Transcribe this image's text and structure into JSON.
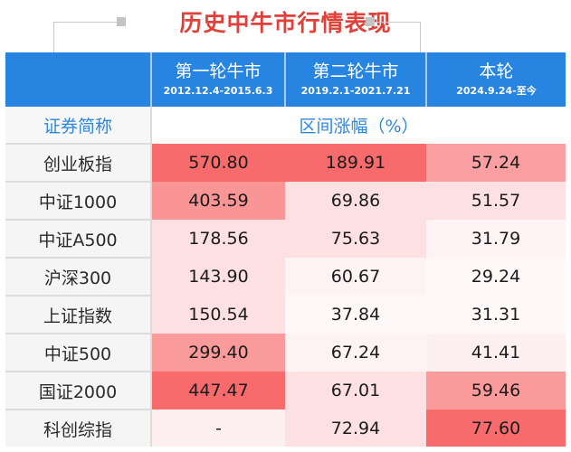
{
  "title": "历史中牛市行情表现",
  "header": {
    "columns": [
      {
        "label": "第一轮牛市",
        "period": "2012.12.4-2015.6.3"
      },
      {
        "label": "第二轮牛市",
        "period": "2019.2.1-2021.7.21"
      },
      {
        "label": "本轮",
        "period": "2024.9.24-至今"
      }
    ],
    "name_col_label": "证券简称",
    "value_group_label": "区间涨幅（%）"
  },
  "rows": [
    {
      "name": "创业板指",
      "values": [
        "570.80",
        "189.91",
        "57.24"
      ],
      "colors": [
        "#f86b6d",
        "#f86b6d",
        "#fba0a2"
      ]
    },
    {
      "name": "中证1000",
      "values": [
        "403.59",
        "69.86",
        "51.57"
      ],
      "colors": [
        "#fa9596",
        "#fde0e2",
        "#fde0e2"
      ]
    },
    {
      "name": "中证A500",
      "values": [
        "178.56",
        "75.63",
        "31.79"
      ],
      "colors": [
        "#fde0e2",
        "#fde0e2",
        "#fef3f4"
      ]
    },
    {
      "name": "沪深300",
      "values": [
        "143.90",
        "60.67",
        "29.24"
      ],
      "colors": [
        "#fde0e2",
        "#fef3f4",
        "#fef8f8"
      ]
    },
    {
      "name": "上证指数",
      "values": [
        "150.54",
        "37.84",
        "31.31"
      ],
      "colors": [
        "#fde0e2",
        "#fef8f8",
        "#fef8f8"
      ]
    },
    {
      "name": "中证500",
      "values": [
        "299.40",
        "67.24",
        "41.41"
      ],
      "colors": [
        "#fa9a9b",
        "#fef3f4",
        "#fef0f1"
      ]
    },
    {
      "name": "国证2000",
      "values": [
        "447.47",
        "67.01",
        "59.46"
      ],
      "colors": [
        "#f86b6d",
        "#fde0e2",
        "#fa9a9b"
      ]
    },
    {
      "name": "科创综指",
      "values": [
        "-",
        "72.94",
        "77.60"
      ],
      "colors": [
        "#fef0f1",
        "#fde0e2",
        "#f86b6d"
      ]
    }
  ],
  "colors": {
    "title": "#e0403a",
    "header_bg": "#2784e0",
    "accent_text": "#2f86db"
  },
  "chart_data": {
    "type": "table",
    "title": "历史中牛市行情表现",
    "subtitle": "区间涨幅（%）",
    "columns": [
      "证券简称",
      "第一轮牛市 (2012.12.4-2015.6.3)",
      "第二轮牛市 (2019.2.1-2021.7.21)",
      "本轮 (2024.9.24-至今)"
    ],
    "categories": [
      "创业板指",
      "中证1000",
      "中证A500",
      "沪深300",
      "上证指数",
      "中证500",
      "国证2000",
      "科创综指"
    ],
    "series": [
      {
        "name": "第一轮牛市",
        "values": [
          570.8,
          403.59,
          178.56,
          143.9,
          150.54,
          299.4,
          447.47,
          null
        ]
      },
      {
        "name": "第二轮牛市",
        "values": [
          189.91,
          69.86,
          75.63,
          60.67,
          37.84,
          67.24,
          67.01,
          72.94
        ]
      },
      {
        "name": "本轮",
        "values": [
          57.24,
          51.57,
          31.79,
          29.24,
          31.31,
          41.41,
          59.46,
          77.6
        ]
      }
    ]
  }
}
